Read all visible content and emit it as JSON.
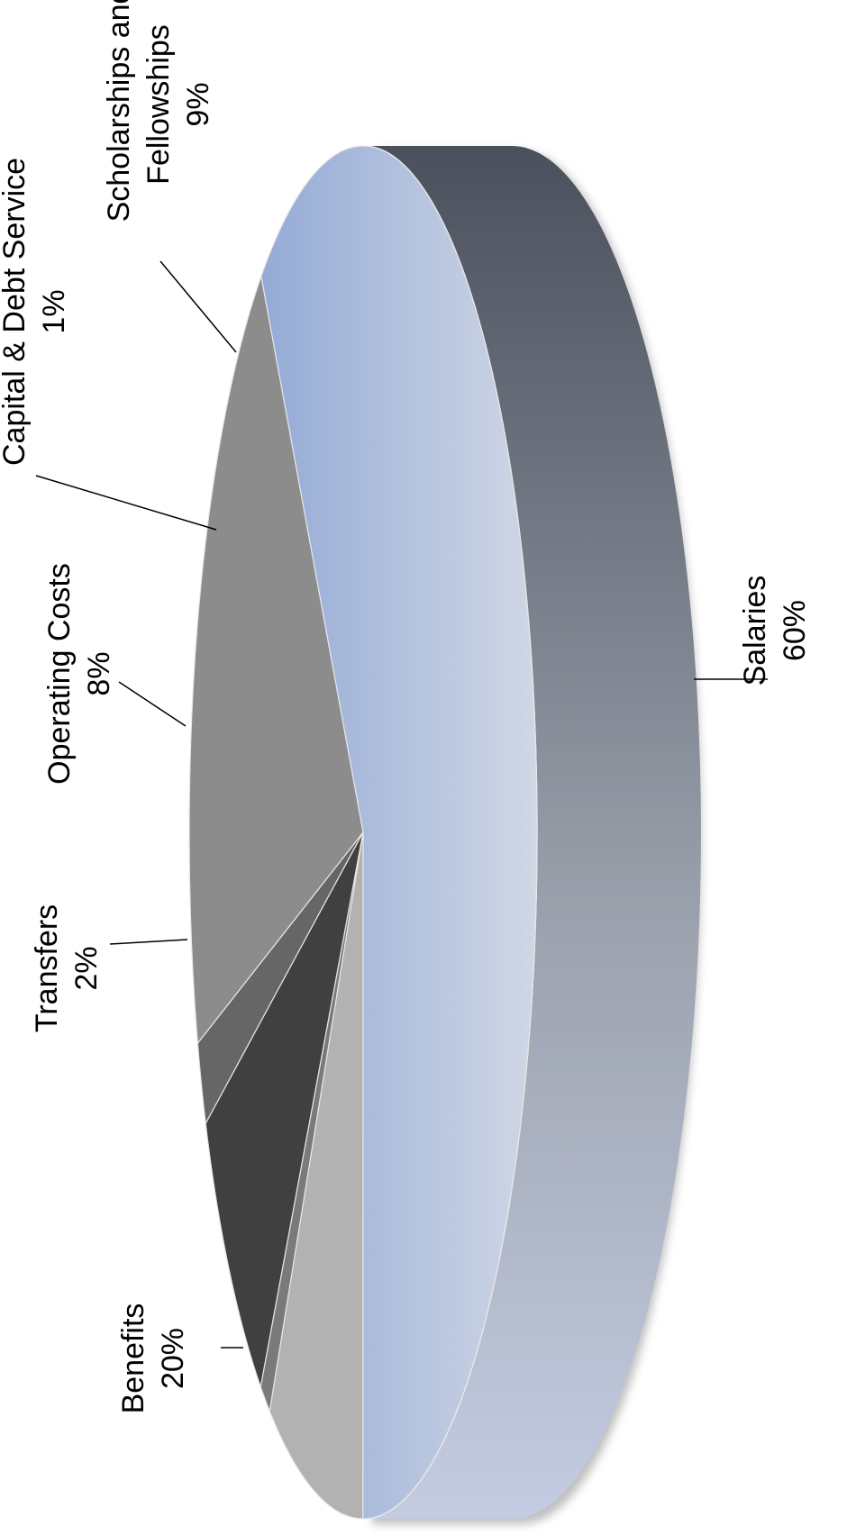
{
  "chart_data": {
    "type": "pie",
    "style": "3d",
    "title": "",
    "legend": "none",
    "slices": [
      {
        "label": "Salaries",
        "percent_label": "60%",
        "value": 60,
        "color": "#a9b8d8"
      },
      {
        "label": "Benefits",
        "percent_label": "20%",
        "value": 20,
        "color": "#8c8c8c"
      },
      {
        "label": "Transfers",
        "percent_label": "2%",
        "value": 2,
        "color": "#666666"
      },
      {
        "label": "Operating Costs",
        "percent_label": "8%",
        "value": 8,
        "color": "#404040"
      },
      {
        "label": "Capital & Debt Service",
        "percent_label": "1%",
        "value": 1,
        "color": "#7a7a7a"
      },
      {
        "label": "Scholarships and Fellowships",
        "percent_label": "9%",
        "value": 9,
        "color": "#b2b2b2"
      }
    ],
    "side_color_top": "#4a505c",
    "side_color_bottom": "#c3cce2"
  }
}
